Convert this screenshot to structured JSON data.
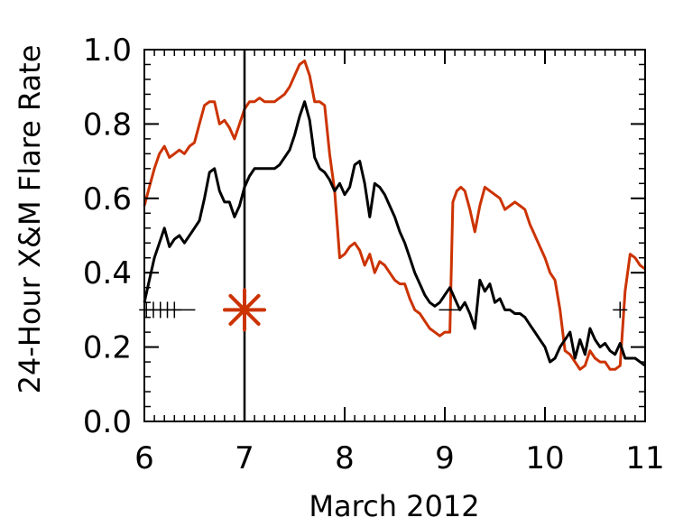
{
  "chart_data": {
    "type": "line",
    "xlabel": "March 2012",
    "ylabel": "24-Hour X&M Flare Rate",
    "xlim": [
      6,
      11
    ],
    "ylim": [
      0.0,
      1.0
    ],
    "xticks": [
      6,
      7,
      8,
      9,
      10,
      11
    ],
    "xtick_labels": [
      "6",
      "7",
      "8",
      "9",
      "10",
      "11"
    ],
    "yticks": [
      0.0,
      0.2,
      0.4,
      0.6,
      0.8,
      1.0
    ],
    "ytick_labels": [
      "0.0",
      "0.2",
      "0.4",
      "0.6",
      "0.8",
      "1.0"
    ],
    "grid": false,
    "vertical_line": {
      "x": 7.0,
      "color": "#000000"
    },
    "series": [
      {
        "color": "#cc3300",
        "x": [
          6.0,
          6.05,
          6.1,
          6.15,
          6.2,
          6.25,
          6.3,
          6.35,
          6.4,
          6.45,
          6.5,
          6.55,
          6.6,
          6.65,
          6.7,
          6.75,
          6.8,
          6.85,
          6.9,
          6.95,
          7.0,
          7.05,
          7.1,
          7.15,
          7.2,
          7.25,
          7.3,
          7.35,
          7.4,
          7.45,
          7.5,
          7.55,
          7.6,
          7.65,
          7.7,
          7.75,
          7.8,
          7.85,
          7.9,
          7.95,
          8.0,
          8.05,
          8.1,
          8.15,
          8.2,
          8.25,
          8.3,
          8.35,
          8.4,
          8.45,
          8.5,
          8.55,
          8.6,
          8.65,
          8.7,
          8.75,
          8.8,
          8.85,
          8.9,
          8.95,
          9.0,
          9.05,
          9.08,
          9.12,
          9.16,
          9.2,
          9.25,
          9.3,
          9.35,
          9.4,
          9.45,
          9.5,
          9.55,
          9.6,
          9.65,
          9.7,
          9.75,
          9.8,
          9.85,
          9.9,
          9.95,
          10.0,
          10.05,
          10.1,
          10.15,
          10.2,
          10.25,
          10.3,
          10.35,
          10.4,
          10.45,
          10.5,
          10.55,
          10.6,
          10.65,
          10.7,
          10.75,
          10.8,
          10.85,
          10.9,
          10.95,
          11.0
        ],
        "y": [
          0.58,
          0.63,
          0.68,
          0.72,
          0.74,
          0.71,
          0.72,
          0.73,
          0.72,
          0.74,
          0.75,
          0.8,
          0.85,
          0.86,
          0.86,
          0.8,
          0.81,
          0.79,
          0.76,
          0.8,
          0.84,
          0.86,
          0.86,
          0.87,
          0.86,
          0.86,
          0.86,
          0.87,
          0.88,
          0.9,
          0.93,
          0.96,
          0.97,
          0.93,
          0.86,
          0.86,
          0.85,
          0.72,
          0.62,
          0.44,
          0.45,
          0.47,
          0.48,
          0.46,
          0.42,
          0.45,
          0.4,
          0.43,
          0.42,
          0.4,
          0.38,
          0.37,
          0.37,
          0.33,
          0.3,
          0.29,
          0.27,
          0.25,
          0.24,
          0.23,
          0.24,
          0.24,
          0.59,
          0.62,
          0.63,
          0.62,
          0.57,
          0.51,
          0.58,
          0.63,
          0.62,
          0.61,
          0.6,
          0.57,
          0.58,
          0.59,
          0.58,
          0.57,
          0.53,
          0.5,
          0.47,
          0.44,
          0.4,
          0.38,
          0.3,
          0.19,
          0.18,
          0.16,
          0.14,
          0.15,
          0.19,
          0.17,
          0.16,
          0.16,
          0.14,
          0.14,
          0.15,
          0.35,
          0.45,
          0.44,
          0.42,
          0.41
        ]
      },
      {
        "color": "#000000",
        "x": [
          6.0,
          6.05,
          6.1,
          6.15,
          6.2,
          6.25,
          6.3,
          6.35,
          6.4,
          6.45,
          6.5,
          6.55,
          6.6,
          6.65,
          6.7,
          6.75,
          6.8,
          6.85,
          6.9,
          6.95,
          7.0,
          7.05,
          7.1,
          7.15,
          7.2,
          7.25,
          7.3,
          7.35,
          7.4,
          7.45,
          7.5,
          7.55,
          7.6,
          7.65,
          7.7,
          7.75,
          7.8,
          7.85,
          7.9,
          7.95,
          8.0,
          8.05,
          8.1,
          8.15,
          8.2,
          8.25,
          8.3,
          8.35,
          8.4,
          8.45,
          8.5,
          8.55,
          8.6,
          8.65,
          8.7,
          8.75,
          8.8,
          8.85,
          8.9,
          8.95,
          9.0,
          9.05,
          9.1,
          9.15,
          9.2,
          9.25,
          9.3,
          9.35,
          9.4,
          9.45,
          9.5,
          9.55,
          9.6,
          9.65,
          9.7,
          9.75,
          9.8,
          9.85,
          9.9,
          9.95,
          10.0,
          10.05,
          10.1,
          10.15,
          10.2,
          10.25,
          10.3,
          10.35,
          10.4,
          10.45,
          10.5,
          10.55,
          10.6,
          10.65,
          10.7,
          10.75,
          10.8,
          10.85,
          10.9,
          10.95,
          11.0
        ],
        "y": [
          0.32,
          0.38,
          0.44,
          0.48,
          0.52,
          0.47,
          0.49,
          0.5,
          0.48,
          0.5,
          0.52,
          0.54,
          0.6,
          0.67,
          0.68,
          0.62,
          0.59,
          0.59,
          0.55,
          0.58,
          0.63,
          0.66,
          0.68,
          0.68,
          0.68,
          0.68,
          0.68,
          0.69,
          0.71,
          0.73,
          0.77,
          0.82,
          0.86,
          0.81,
          0.71,
          0.68,
          0.67,
          0.65,
          0.62,
          0.64,
          0.61,
          0.63,
          0.69,
          0.7,
          0.64,
          0.55,
          0.64,
          0.63,
          0.61,
          0.58,
          0.55,
          0.51,
          0.48,
          0.44,
          0.4,
          0.37,
          0.34,
          0.32,
          0.31,
          0.32,
          0.34,
          0.36,
          0.33,
          0.3,
          0.32,
          0.29,
          0.25,
          0.38,
          0.35,
          0.37,
          0.32,
          0.33,
          0.3,
          0.3,
          0.29,
          0.29,
          0.28,
          0.26,
          0.24,
          0.22,
          0.2,
          0.16,
          0.17,
          0.2,
          0.22,
          0.24,
          0.17,
          0.22,
          0.18,
          0.25,
          0.22,
          0.2,
          0.21,
          0.19,
          0.18,
          0.21,
          0.17,
          0.17,
          0.17,
          0.16,
          0.15
        ]
      }
    ],
    "markers": [
      {
        "shape": "plus",
        "x": 6.02,
        "y": 0.3,
        "color": "#000000"
      },
      {
        "shape": "plus",
        "x": 6.09,
        "y": 0.3,
        "color": "#000000"
      },
      {
        "shape": "plus",
        "x": 6.16,
        "y": 0.3,
        "color": "#000000"
      },
      {
        "shape": "plus",
        "x": 6.23,
        "y": 0.3,
        "color": "#000000"
      },
      {
        "shape": "plus",
        "x": 6.3,
        "y": 0.3,
        "color": "#000000"
      },
      {
        "shape": "dash",
        "x": 6.4,
        "y": 0.3,
        "color": "#000000"
      },
      {
        "shape": "asterisk",
        "x": 7.0,
        "y": 0.3,
        "color": "#cc3300"
      },
      {
        "shape": "dash",
        "x": 9.05,
        "y": 0.3,
        "color": "#000000"
      },
      {
        "shape": "plus",
        "x": 10.75,
        "y": 0.3,
        "color": "#000000"
      }
    ]
  }
}
